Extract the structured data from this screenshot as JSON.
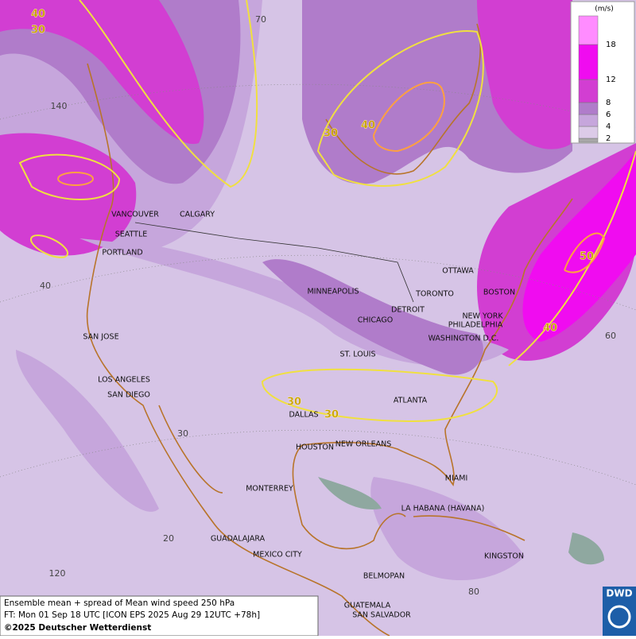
{
  "map": {
    "caption": [
      "Ensemble mean + spread of Mean wind speed 250 hPa",
      "FT: Mon 01 Sep 18 UTC [ICON EPS 2025 Aug 29 12UTC +78h]",
      "©2025 Deutscher Wetterdienst"
    ],
    "logo": "DWD",
    "legend": {
      "unit": "(m/s)",
      "levels": [
        2,
        4,
        6,
        8,
        12,
        18
      ],
      "colors": [
        "#a8a8a8",
        "#dccbe8",
        "#c6a6dc",
        "#b07cca",
        "#d23ed2",
        "#f00cf0",
        "#ff8cff"
      ]
    },
    "cities": [
      "VANCOUVER",
      "CALGARY",
      "SEATTLE",
      "PORTLAND",
      "MINNEAPOLIS",
      "TORONTO",
      "OTTAWA",
      "BOSTON",
      "DETROIT",
      "NEW YORK",
      "PHILADELPHIA",
      "CHICAGO",
      "WASHINGTON D.C.",
      "SAN JOSE",
      "ST. LOUIS",
      "LOS ANGELES",
      "SAN DIEGO",
      "ATLANTA",
      "DALLAS",
      "HOUSTON",
      "NEW ORLEANS",
      "MIAMI",
      "MONTERREY",
      "LA HABANA (HAVANA)",
      "GUADALAJARA",
      "MEXICO CITY",
      "KINGSTON",
      "BELMOPAN",
      "GUATEMALA",
      "SAN SALVADOR"
    ],
    "contour_labels": [
      "40",
      "30",
      "30",
      "40",
      "50",
      "40",
      "30",
      "30"
    ],
    "grid_labels": [
      "70",
      "140",
      "40",
      "60",
      "30",
      "20",
      "120",
      "80"
    ]
  }
}
